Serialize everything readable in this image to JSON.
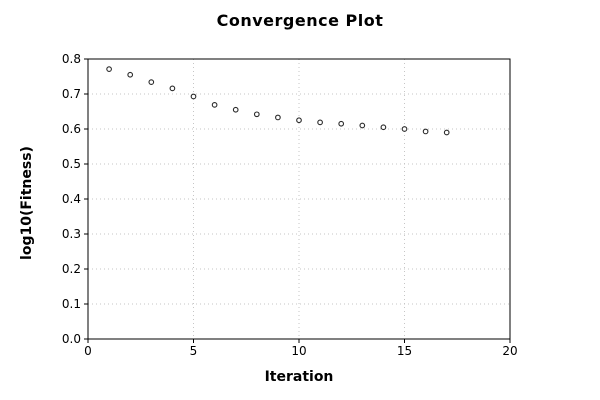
{
  "chart_data": {
    "type": "scatter",
    "title": "Convergence Plot",
    "xlabel": "Iteration",
    "ylabel": "log10(Fitness)",
    "xlim": [
      0,
      20
    ],
    "ylim": [
      0.0,
      0.8
    ],
    "xticks": {
      "values": [
        0,
        5,
        10,
        15,
        20
      ],
      "labels": [
        "0",
        "5",
        "10",
        "15",
        "20"
      ]
    },
    "yticks": {
      "values": [
        0.0,
        0.1,
        0.2,
        0.3,
        0.4,
        0.5,
        0.6,
        0.7,
        0.8
      ],
      "labels": [
        "0.0",
        "0.1",
        "0.2",
        "0.3",
        "0.4",
        "0.5",
        "0.6",
        "0.7",
        "0.8"
      ]
    },
    "grid": {
      "visible": true,
      "style": "dotted",
      "color": "#c6c6c6"
    },
    "legend": {
      "visible": false
    },
    "marker": {
      "shape": "open-circle",
      "color": "#2b2b2b",
      "fill": "#ffffff"
    },
    "colors": {
      "background": "#ffffff",
      "axis": "#000000",
      "text": "#000000"
    },
    "series": [
      {
        "x": [
          1,
          2,
          3,
          4,
          5,
          6,
          7,
          8,
          9,
          10,
          11,
          12,
          13,
          14,
          15,
          16,
          17
        ],
        "y": [
          0.771,
          0.755,
          0.734,
          0.716,
          0.693,
          0.669,
          0.655,
          0.642,
          0.633,
          0.625,
          0.619,
          0.615,
          0.61,
          0.605,
          0.6,
          0.593,
          0.59
        ]
      }
    ]
  }
}
